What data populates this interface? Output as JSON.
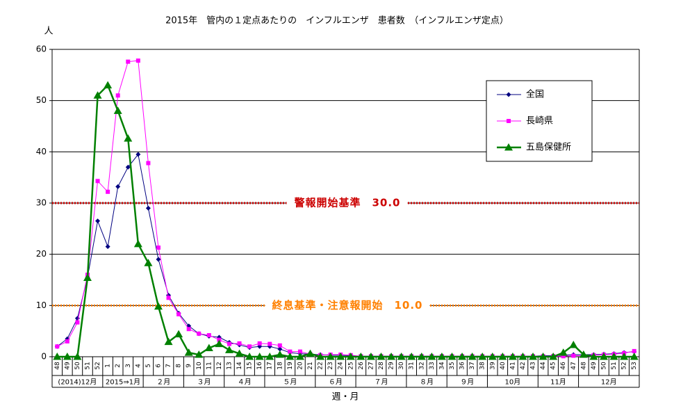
{
  "chart_data": {
    "type": "line",
    "title": "2015年　管内の１定点あたりの　インフルエンザ　患者数　（インフルエンザ定点）",
    "y_label": "人",
    "x_label": "週・月",
    "categories": [
      "48",
      "49",
      "50",
      "51",
      "52",
      "1",
      "2",
      "3",
      "4",
      "5",
      "6",
      "7",
      "8",
      "9",
      "10",
      "11",
      "12",
      "13",
      "14",
      "15",
      "16",
      "17",
      "18",
      "19",
      "20",
      "21",
      "22",
      "23",
      "24",
      "25",
      "26",
      "27",
      "28",
      "29",
      "30",
      "31",
      "32",
      "33",
      "34",
      "35",
      "36",
      "37",
      "38",
      "39",
      "40",
      "41",
      "42",
      "43",
      "44",
      "45",
      "46",
      "47",
      "48",
      "49",
      "50",
      "51",
      "52",
      "53"
    ],
    "month_groups": [
      {
        "label": "(2014)12月",
        "weeks": 5
      },
      {
        "label": "2015⇒1月",
        "weeks": 4
      },
      {
        "label": "２月",
        "weeks": 4
      },
      {
        "label": "３月",
        "weeks": 4
      },
      {
        "label": "４月",
        "weeks": 4
      },
      {
        "label": "５月",
        "weeks": 5
      },
      {
        "label": "６月",
        "weeks": 4
      },
      {
        "label": "７月",
        "weeks": 5
      },
      {
        "label": "８月",
        "weeks": 4
      },
      {
        "label": "９月",
        "weeks": 4
      },
      {
        "label": "10月",
        "weeks": 5
      },
      {
        "label": "11月",
        "weeks": 4
      },
      {
        "label": "12月",
        "weeks": 6
      }
    ],
    "series": [
      {
        "name": "全国",
        "color": "#000080",
        "marker": "diamond",
        "values": [
          2.0,
          3.5,
          7.5,
          15.5,
          26.5,
          21.5,
          33.2,
          37.0,
          39.5,
          29.0,
          19.0,
          12.0,
          8.5,
          6.0,
          4.5,
          4.0,
          3.8,
          2.8,
          2.3,
          1.8,
          2.0,
          2.0,
          1.5,
          0.8,
          0.6,
          0.5,
          0.4,
          0.3,
          0.3,
          0.2,
          0.1,
          0.1,
          0.1,
          0.1,
          0.1,
          0.1,
          0.1,
          0.1,
          0.1,
          0.1,
          0.1,
          0.1,
          0.1,
          0.1,
          0.1,
          0.1,
          0.1,
          0.1,
          0.2,
          0.2,
          0.3,
          0.4,
          0.4,
          0.4,
          0.5,
          0.6,
          0.8,
          1.0
        ]
      },
      {
        "name": "長崎県",
        "color": "#ff00ff",
        "marker": "square",
        "values": [
          2.0,
          3.0,
          6.7,
          16.0,
          34.3,
          32.2,
          51.0,
          57.6,
          57.8,
          37.8,
          21.3,
          11.5,
          8.3,
          5.4,
          4.5,
          4.2,
          3.3,
          2.5,
          2.6,
          2.0,
          2.6,
          2.5,
          2.2,
          1.0,
          1.0,
          0.5,
          0.3,
          0.4,
          0.4,
          0.3,
          0.1,
          0.1,
          0.1,
          0.1,
          0.1,
          0.1,
          0.1,
          0.1,
          0.1,
          0.1,
          0.1,
          0.1,
          0.1,
          0.1,
          0.1,
          0.1,
          0.1,
          0.1,
          0.1,
          0.1,
          0.1,
          0.2,
          0.2,
          0.3,
          0.4,
          0.5,
          0.7,
          1.1
        ]
      },
      {
        "name": "五島保健所",
        "color": "#008000",
        "marker": "triangle",
        "values": [
          0,
          0,
          0,
          15.4,
          51.0,
          53.0,
          48.0,
          42.6,
          22.0,
          18.3,
          9.8,
          2.9,
          4.4,
          0.8,
          0.4,
          1.7,
          2.5,
          1.3,
          0.6,
          0,
          0,
          0,
          0.4,
          0,
          0,
          0.6,
          0,
          0,
          0,
          0,
          0,
          0,
          0,
          0,
          0,
          0,
          0,
          0,
          0,
          0,
          0,
          0,
          0,
          0,
          0,
          0,
          0,
          0,
          0,
          0,
          0.8,
          2.3,
          0.4,
          0,
          0,
          0,
          0,
          0
        ]
      }
    ],
    "thresholds": [
      {
        "value": 30,
        "label": "警報開始基準　30.0",
        "color": "#cc0000"
      },
      {
        "value": 10,
        "label": "終息基準・注意報開始　10.0",
        "color": "#ff8000"
      }
    ],
    "ylim": [
      0,
      60
    ],
    "yticks": [
      0,
      10,
      20,
      30,
      40,
      50,
      60
    ],
    "grid": true
  }
}
